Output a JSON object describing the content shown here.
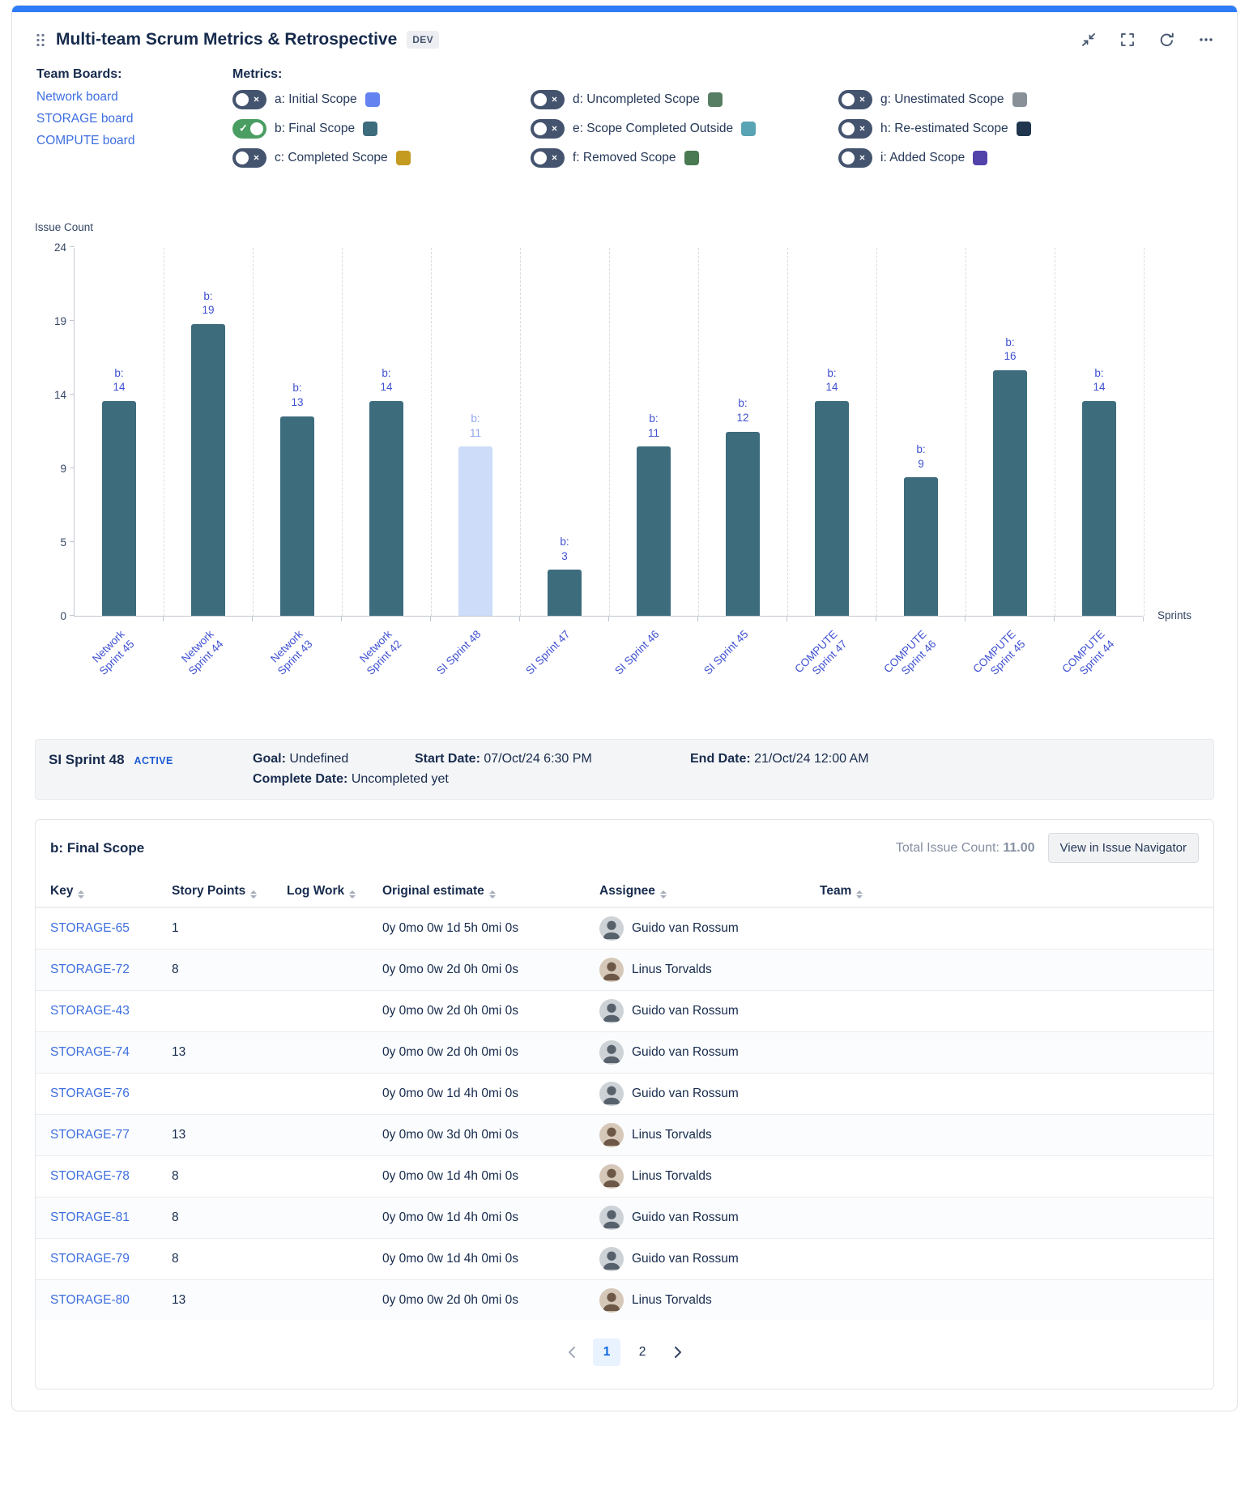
{
  "colors": {
    "accent_bar": "#2e7cf6",
    "link": "#3e6fe0",
    "toggle_on": "#4a9e61",
    "toggle_off": "#44546f",
    "active_badge": "#1e5bd6",
    "page_active_bg": "#e9f2ff",
    "page_active_text": "#0c66e4"
  },
  "header": {
    "title": "Multi-team Scrum Metrics & Retrospective",
    "badge": "DEV"
  },
  "team_boards": {
    "label": "Team Boards:",
    "items": [
      "Network board",
      "STORAGE board",
      "COMPUTE board"
    ]
  },
  "metrics": {
    "label": "Metrics:",
    "items": [
      {
        "key": "a",
        "label": "a: Initial Scope",
        "color": "#6583f0",
        "enabled": false
      },
      {
        "key": "b",
        "label": "b: Final Scope",
        "color": "#3d6c7d",
        "enabled": true
      },
      {
        "key": "c",
        "label": "c: Completed Scope",
        "color": "#c49a1f",
        "enabled": false
      },
      {
        "key": "d",
        "label": "d: Uncompleted Scope",
        "color": "#577d63",
        "enabled": false
      },
      {
        "key": "e",
        "label": "e: Scope Completed Outside",
        "color": "#58a4b4",
        "enabled": false
      },
      {
        "key": "f",
        "label": "f: Removed Scope",
        "color": "#4a7a52",
        "enabled": false
      },
      {
        "key": "g",
        "label": "g: Unestimated Scope",
        "color": "#8a9097",
        "enabled": false
      },
      {
        "key": "h",
        "label": "h: Re-estimated Scope",
        "color": "#1f364e",
        "enabled": false
      },
      {
        "key": "i",
        "label": "i: Added Scope",
        "color": "#5243aa",
        "enabled": false
      }
    ]
  },
  "chart_data": {
    "type": "bar",
    "title": "",
    "ylabel": "Issue Count",
    "xlabel": "Sprints",
    "ylim": [
      0,
      24
    ],
    "yticks": [
      0,
      5,
      9,
      14,
      19,
      24
    ],
    "grid": true,
    "legend": false,
    "categories": [
      "Network Sprint 45",
      "Network Sprint 44",
      "Network Sprint 43",
      "Network Sprint 42",
      "SI Sprint 48",
      "SI Sprint 47",
      "SI Sprint 46",
      "SI Sprint 45",
      "COMPUTE Sprint 47",
      "COMPUTE Sprint 46",
      "COMPUTE Sprint 45",
      "COMPUTE Sprint 44"
    ],
    "series": [
      {
        "name": "b: Final Scope",
        "label_prefix": "b:",
        "values": [
          14,
          19,
          13,
          14,
          11,
          3,
          11,
          12,
          14,
          9,
          16,
          14
        ]
      }
    ],
    "highlighted_category": "SI Sprint 48",
    "bar_color": "#3d6c7d",
    "bar_color_highlight": "#cddcf8",
    "label_color": "#3f51d1",
    "label_color_highlight": "#8fa7ea",
    "xlabel_color": "#3f51d1"
  },
  "sprint_info": {
    "name": "SI Sprint 48",
    "status": "ACTIVE",
    "goal_label": "Goal:",
    "goal": "Undefined",
    "start_label": "Start Date:",
    "start": "07/Oct/24 6:30 PM",
    "end_label": "End Date:",
    "end": "21/Oct/24 12:00 AM",
    "complete_label": "Complete Date:",
    "complete": "Uncompleted yet"
  },
  "table": {
    "title": "b: Final Scope",
    "total_label": "Total Issue Count:",
    "total_value": "11.00",
    "button": "View in Issue Navigator",
    "columns": [
      "Key",
      "Story Points",
      "Log Work",
      "Original estimate",
      "Assignee",
      "Team"
    ],
    "rows": [
      {
        "key": "STORAGE-65",
        "story_points": "1",
        "log_work": "",
        "original_estimate": "0y 0mo 0w 1d 5h 0mi 0s",
        "assignee": "Guido van Rossum",
        "team": ""
      },
      {
        "key": "STORAGE-72",
        "story_points": "8",
        "log_work": "",
        "original_estimate": "0y 0mo 0w 2d 0h 0mi 0s",
        "assignee": "Linus Torvalds",
        "team": ""
      },
      {
        "key": "STORAGE-43",
        "story_points": "",
        "log_work": "",
        "original_estimate": "0y 0mo 0w 2d 0h 0mi 0s",
        "assignee": "Guido van Rossum",
        "team": ""
      },
      {
        "key": "STORAGE-74",
        "story_points": "13",
        "log_work": "",
        "original_estimate": "0y 0mo 0w 2d 0h 0mi 0s",
        "assignee": "Guido van Rossum",
        "team": ""
      },
      {
        "key": "STORAGE-76",
        "story_points": "",
        "log_work": "",
        "original_estimate": "0y 0mo 0w 1d 4h 0mi 0s",
        "assignee": "Guido van Rossum",
        "team": ""
      },
      {
        "key": "STORAGE-77",
        "story_points": "13",
        "log_work": "",
        "original_estimate": "0y 0mo 0w 3d 0h 0mi 0s",
        "assignee": "Linus Torvalds",
        "team": ""
      },
      {
        "key": "STORAGE-78",
        "story_points": "8",
        "log_work": "",
        "original_estimate": "0y 0mo 0w 1d 4h 0mi 0s",
        "assignee": "Linus Torvalds",
        "team": ""
      },
      {
        "key": "STORAGE-81",
        "story_points": "8",
        "log_work": "",
        "original_estimate": "0y 0mo 0w 1d 4h 0mi 0s",
        "assignee": "Guido van Rossum",
        "team": ""
      },
      {
        "key": "STORAGE-79",
        "story_points": "8",
        "log_work": "",
        "original_estimate": "0y 0mo 0w 1d 4h 0mi 0s",
        "assignee": "Guido van Rossum",
        "team": ""
      },
      {
        "key": "STORAGE-80",
        "story_points": "13",
        "log_work": "",
        "original_estimate": "0y 0mo 0w 2d 0h 0mi 0s",
        "assignee": "Linus Torvalds",
        "team": ""
      }
    ]
  },
  "pagination": {
    "pages": [
      "1",
      "2"
    ],
    "current": "1"
  }
}
